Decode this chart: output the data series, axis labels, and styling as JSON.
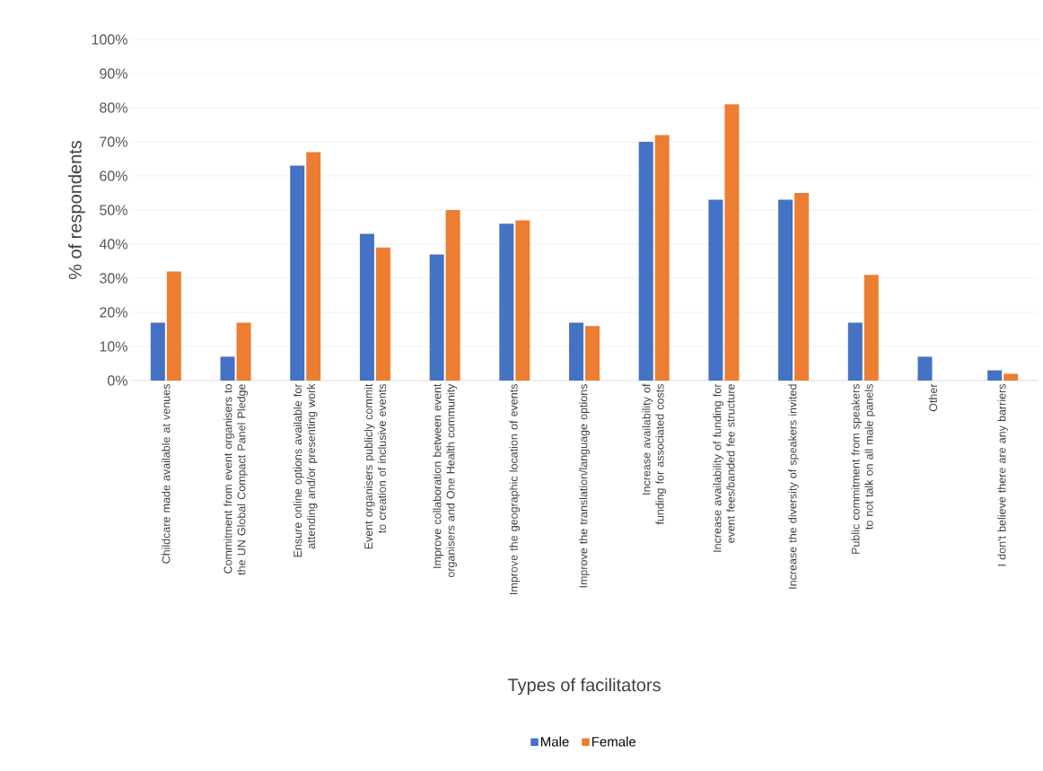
{
  "chart_data": {
    "type": "bar",
    "xlabel": "Types of facilitators",
    "ylabel": "% of respondents",
    "categories": [
      "Childcare made available at venues",
      "Commitment from event organisers to the UN Global Compact Panel Pledge",
      "Ensure online options available for attending and/or presenting work",
      "Event organisers publicly commit to creation of inclusive events",
      "Improve collaboration between event organisers and One Health community",
      "Improve the geographic location of events",
      "Improve the translation/language options",
      "Increase availability of funding for associated costs",
      "Increase availability of funding for event fees/banded fee structure",
      "Increase the diversity of speakers invited",
      "Public commitment from speakers to not talk on all male panels",
      "Other",
      "I don't believe there are any barriers"
    ],
    "series": [
      {
        "name": "Male",
        "color": "#4472c4",
        "values": [
          17,
          7,
          63,
          43,
          37,
          46,
          17,
          70,
          53,
          53,
          17,
          7,
          3
        ]
      },
      {
        "name": "Female",
        "color": "#ed7d31",
        "values": [
          32,
          17,
          67,
          39,
          50,
          47,
          16,
          72,
          81,
          55,
          31,
          0,
          2
        ]
      }
    ],
    "ylim": [
      0,
      100
    ],
    "yticks": [
      {
        "value": 0,
        "label": "0%"
      },
      {
        "value": 10,
        "label": "10%"
      },
      {
        "value": 20,
        "label": "20%"
      },
      {
        "value": 30,
        "label": "30%"
      },
      {
        "value": 40,
        "label": "40%"
      },
      {
        "value": 50,
        "label": "50%"
      },
      {
        "value": 60,
        "label": "60%"
      },
      {
        "value": 70,
        "label": "70%"
      },
      {
        "value": 80,
        "label": "80%"
      },
      {
        "value": 90,
        "label": "90%"
      },
      {
        "value": 100,
        "label": "100%"
      }
    ],
    "grid": "y",
    "legend": "bottom"
  }
}
